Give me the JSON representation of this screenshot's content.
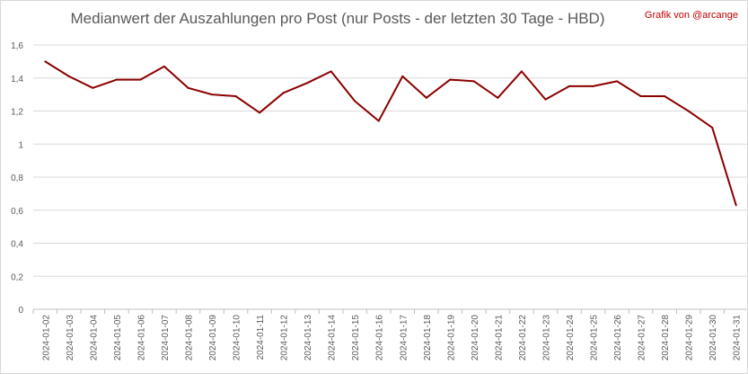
{
  "chart_data": {
    "type": "line",
    "title": "Medianwert der Auszahlungen pro Post (nur Posts - der letzten 30 Tage - HBD)",
    "credit": "Grafik von @arcange",
    "xlabel": "",
    "ylabel": "",
    "ylim": [
      0,
      1.6
    ],
    "yticks": [
      "0",
      "0,2",
      "0,4",
      "0,6",
      "0,8",
      "1",
      "1,2",
      "1,4",
      "1,6"
    ],
    "grid": true,
    "categories": [
      "2024-01-02",
      "2024-01-03",
      "2024-01-04",
      "2024-01-05",
      "2024-01-06",
      "2024-01-07",
      "2024-01-08",
      "2024-01-09",
      "2024-01-10",
      "2024-01-11",
      "2024-01-12",
      "2024-01-13",
      "2024-01-14",
      "2024-01-15",
      "2024-01-16",
      "2024-01-17",
      "2024-01-18",
      "2024-01-19",
      "2024-01-20",
      "2024-01-21",
      "2024-01-22",
      "2024-01-23",
      "2024-01-24",
      "2024-01-25",
      "2024-01-26",
      "2024-01-27",
      "2024-01-28",
      "2024-01-29",
      "2024-01-30",
      "2024-01-31"
    ],
    "series": [
      {
        "color": "#8b0000",
        "values": [
          1.5,
          1.41,
          1.34,
          1.39,
          1.39,
          1.47,
          1.34,
          1.3,
          1.29,
          1.19,
          1.31,
          1.37,
          1.44,
          1.26,
          1.14,
          1.41,
          1.28,
          1.39,
          1.38,
          1.28,
          1.44,
          1.27,
          1.35,
          1.35,
          1.38,
          1.29,
          1.29,
          1.2,
          1.1,
          0.63
        ]
      }
    ]
  }
}
